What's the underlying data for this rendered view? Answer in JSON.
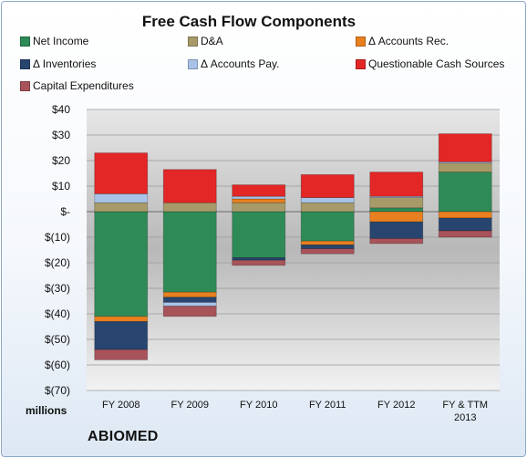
{
  "chart_data": {
    "type": "bar",
    "stacked": true,
    "title": "Free Cash Flow Components",
    "unit_label": "millions",
    "company": "ABIOMED",
    "categories": [
      "FY 2008",
      "FY 2009",
      "FY 2010",
      "FY 2011",
      "FY 2012",
      "FY & TTM 2013"
    ],
    "ylim": [
      -70,
      40
    ],
    "y_ticks": [
      40,
      30,
      20,
      10,
      0,
      -10,
      -20,
      -30,
      -40,
      -50,
      -60,
      -70
    ],
    "y_tick_labels": [
      "$40",
      "$30",
      "$20",
      "$10",
      "$-",
      "$(10)",
      "$(20)",
      "$(30)",
      "$(40)",
      "$(50)",
      "$(60)",
      "$(70)"
    ],
    "grid": true,
    "legend_position": "top",
    "series": [
      {
        "name": "Net Income",
        "color": "#2e8b57",
        "values": [
          -41,
          -31.5,
          -18,
          -11.5,
          1.5,
          15.5
        ]
      },
      {
        "name": "D&A",
        "color": "#a89a68",
        "values": [
          3.5,
          3.5,
          3.5,
          3.5,
          4,
          3.5
        ]
      },
      {
        "name": "Δ Accounts Rec.",
        "color": "#e8801f",
        "values": [
          -2,
          -2,
          1.5,
          -1.5,
          -4,
          -2.5
        ]
      },
      {
        "name": "Δ Inventories",
        "color": "#27456f",
        "values": [
          -11,
          -2,
          -1,
          -1.5,
          -6.5,
          -5
        ]
      },
      {
        "name": "Δ Accounts Pay.",
        "color": "#a9c3e8",
        "values": [
          3.5,
          -1.5,
          1,
          2,
          0.5,
          0.5
        ]
      },
      {
        "name": "Questionable Cash Sources",
        "color": "#e32626",
        "values": [
          16,
          13,
          4.5,
          9,
          9.5,
          11
        ]
      },
      {
        "name": "Capital Expenditures",
        "color": "#a8525a",
        "values": [
          -4,
          -4,
          -2,
          -2,
          -2,
          -2.5
        ]
      }
    ]
  }
}
